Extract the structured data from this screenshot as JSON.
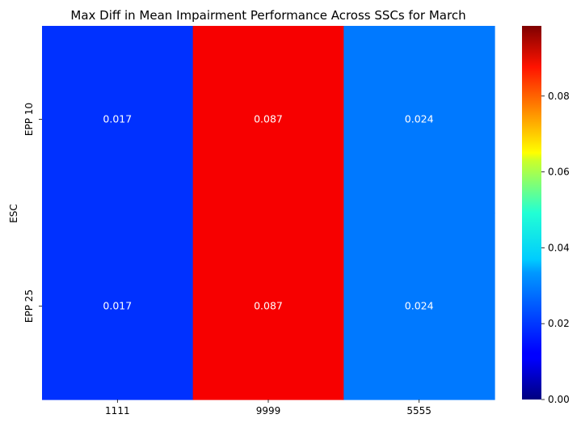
{
  "chart_data": {
    "type": "heatmap",
    "title": "Max Diff in Mean Impairment Performance Across SSCs for March",
    "xlabel": "",
    "ylabel": "ESC",
    "x_categories": [
      "1111",
      "9999",
      "5555"
    ],
    "y_categories": [
      "EPP 10",
      "EPP 25"
    ],
    "values": [
      [
        0.017,
        0.087,
        0.024
      ],
      [
        0.017,
        0.087,
        0.024
      ]
    ],
    "annotations": [
      [
        "0.017",
        "0.087",
        "0.024"
      ],
      [
        "0.017",
        "0.087",
        "0.024"
      ]
    ],
    "colormap": "jet",
    "colorbar": {
      "min": 0.0,
      "max": 0.0985,
      "ticks": [
        0.0,
        0.02,
        0.04,
        0.06,
        0.08
      ],
      "tick_labels": [
        "0.00",
        "0.02",
        "0.04",
        "0.06",
        "0.08"
      ]
    },
    "grid": false,
    "legend": "none"
  }
}
